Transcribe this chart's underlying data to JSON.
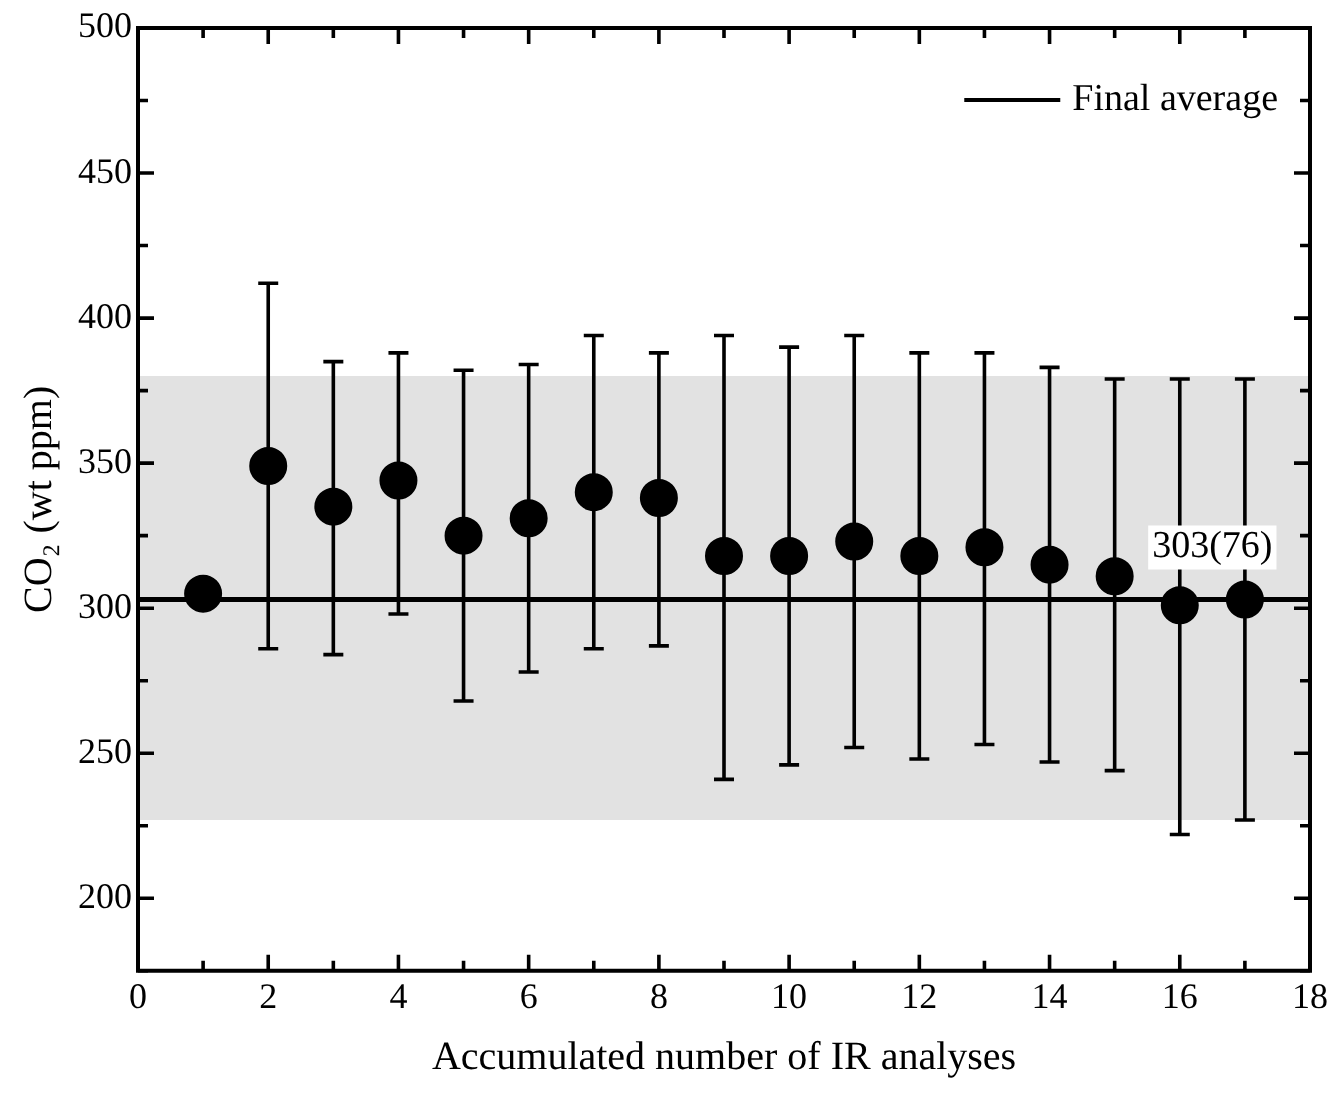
{
  "chart_data": {
    "type": "scatter",
    "xlabel": "Accumulated number of IR analyses",
    "ylabel": "CO₂ (wt ppm)",
    "x": [
      1,
      2,
      3,
      4,
      5,
      6,
      7,
      8,
      9,
      10,
      11,
      12,
      13,
      14,
      15,
      16,
      17
    ],
    "series": [
      {
        "color": "#000000",
        "values": [
          305,
          349,
          335,
          344,
          325,
          331,
          340,
          338,
          318,
          318,
          323,
          318,
          321,
          315,
          311,
          301,
          303
        ],
        "errors": [
          null,
          [
            286,
            412
          ],
          [
            284,
            385
          ],
          [
            298,
            388
          ],
          [
            268,
            382
          ],
          [
            278,
            384
          ],
          [
            286,
            394
          ],
          [
            287,
            388
          ],
          [
            241,
            394
          ],
          [
            246,
            390
          ],
          [
            252,
            394
          ],
          [
            248,
            388
          ],
          [
            253,
            388
          ],
          [
            247,
            383
          ],
          [
            244,
            379
          ],
          [
            222,
            379
          ],
          [
            227,
            379
          ]
        ]
      }
    ],
    "marker": "circle",
    "xlim": [
      0,
      18
    ],
    "xticks": [
      0,
      2,
      4,
      6,
      8,
      10,
      12,
      14,
      16,
      18
    ],
    "ylim": [
      175,
      500
    ],
    "yticks": [
      200,
      250,
      300,
      350,
      400,
      450,
      500
    ],
    "ref_lines": [
      {
        "axis": "y",
        "value": 303,
        "label": "Final average",
        "color": "#000000",
        "line_style": "solid"
      }
    ],
    "bands": [
      {
        "axis": "y",
        "from": 227,
        "to": 380,
        "color": "#e2e2e2"
      }
    ],
    "annotations": [
      {
        "text": "303(76)",
        "x": 16.5,
        "y": 303
      }
    ],
    "legend": "top right",
    "grid": false
  }
}
